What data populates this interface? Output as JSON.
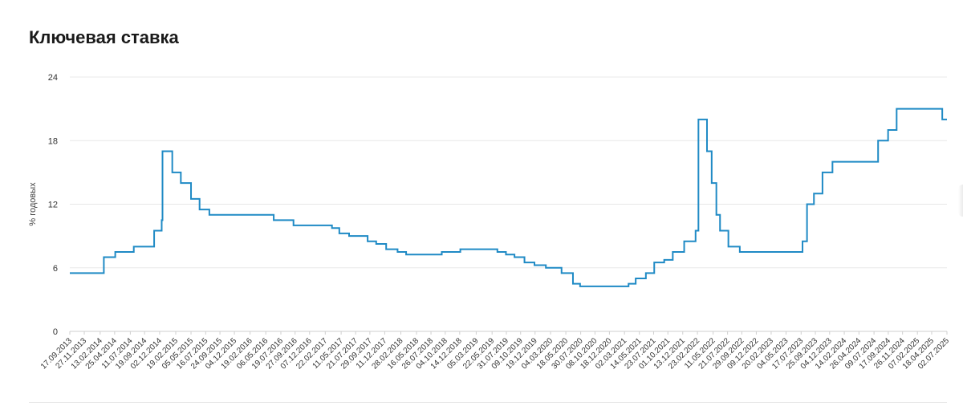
{
  "page": {
    "title": "Ключевая ставка"
  },
  "chart_data": {
    "type": "line",
    "step": true,
    "title": "Ключевая ставка",
    "xlabel": "",
    "ylabel": "% годовых",
    "ylim": [
      0,
      24
    ],
    "yticks": [
      0,
      6,
      12,
      18,
      24
    ],
    "grid": true,
    "color": "#1f8ac5",
    "x_tick_labels": [
      "17.09.2013",
      "27.11.2013",
      "13.02.2014",
      "25.04.2014",
      "11.07.2014",
      "19.09.2014",
      "02.12.2014",
      "19.02.2015",
      "05.05.2015",
      "16.07.2015",
      "24.09.2015",
      "04.12.2015",
      "19.02.2016",
      "06.05.2016",
      "19.07.2016",
      "27.09.2016",
      "07.12.2016",
      "22.02.2017",
      "11.05.2017",
      "21.07.2017",
      "29.09.2017",
      "11.12.2017",
      "28.02.2018",
      "16.05.2018",
      "26.07.2018",
      "04.10.2018",
      "14.12.2018",
      "05.03.2019",
      "22.05.2019",
      "31.07.2019",
      "09.10.2019",
      "19.12.2019",
      "04.03.2020",
      "18.05.2020",
      "30.07.2020",
      "08.10.2020",
      "18.12.2020",
      "02.03.2021",
      "14.05.2021",
      "23.07.2021",
      "01.10.2021",
      "13.12.2021",
      "23.02.2022",
      "11.05.2022",
      "21.07.2022",
      "29.09.2022",
      "09.12.2022",
      "20.02.2023",
      "04.05.2023",
      "17.07.2023",
      "25.09.2023",
      "04.12.2023",
      "14.02.2024",
      "26.04.2024",
      "09.07.2024",
      "17.09.2024",
      "26.11.2024",
      "07.02.2025",
      "18.04.2025",
      "02.07.2025"
    ],
    "series": [
      {
        "x": [
          "2013-09-13",
          "2014-03-03",
          "2014-04-28",
          "2014-07-28",
          "2014-11-05",
          "2014-12-12",
          "2014-12-16",
          "2015-02-02",
          "2015-03-16",
          "2015-05-05",
          "2015-06-16",
          "2015-08-03",
          "2016-06-14",
          "2016-09-19",
          "2017-03-27",
          "2017-05-02",
          "2017-06-19",
          "2017-09-18",
          "2017-10-30",
          "2017-12-18",
          "2018-02-12",
          "2018-03-26",
          "2018-09-17",
          "2018-12-17",
          "2019-06-17",
          "2019-07-29",
          "2019-09-09",
          "2019-10-28",
          "2019-12-16",
          "2020-02-10",
          "2020-04-27",
          "2020-06-22",
          "2020-07-27",
          "2021-03-22",
          "2021-04-26",
          "2021-06-15",
          "2021-07-26",
          "2021-09-13",
          "2021-10-25",
          "2021-12-20",
          "2022-02-14",
          "2022-02-28",
          "2022-04-11",
          "2022-05-04",
          "2022-05-27",
          "2022-06-14",
          "2022-07-25",
          "2022-09-19",
          "2023-07-24",
          "2023-08-15",
          "2023-09-18",
          "2023-10-30",
          "2023-12-18",
          "2024-07-29",
          "2024-09-16",
          "2024-10-28",
          "2025-06-09",
          "2025-07-28"
        ],
        "y": [
          5.5,
          7,
          7.5,
          8,
          9.5,
          10.5,
          17,
          15,
          14,
          12.5,
          11.5,
          11,
          10.5,
          10,
          9.75,
          9.25,
          9,
          8.5,
          8.25,
          7.75,
          7.5,
          7.25,
          7.5,
          7.75,
          7.5,
          7.25,
          7,
          6.5,
          6.25,
          6,
          5.5,
          4.5,
          4.25,
          4.5,
          5,
          5.5,
          6.5,
          6.75,
          7.5,
          8.5,
          9.5,
          20,
          17,
          14,
          11,
          9.5,
          8,
          7.5,
          8.5,
          12,
          13,
          15,
          16,
          18,
          19,
          21,
          20,
          20
        ]
      }
    ]
  }
}
